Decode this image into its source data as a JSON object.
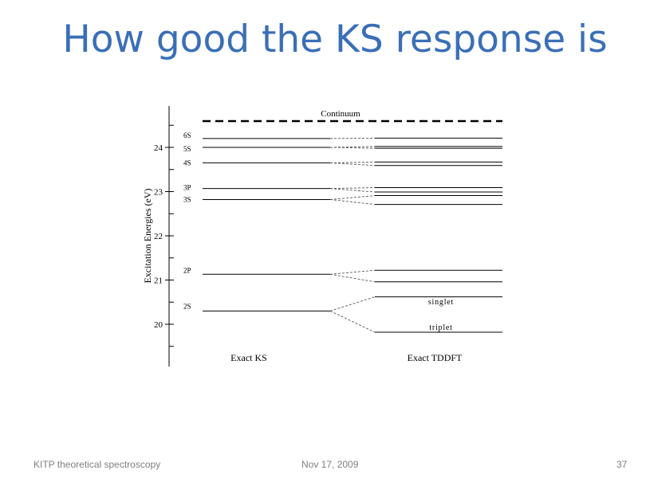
{
  "slide": {
    "title": "How good the KS response is",
    "footer_left": "KITP theoretical spectroscopy",
    "footer_center": "Nov 17, 2009",
    "page_number": "37"
  },
  "diagram": {
    "y_axis_label": "Excitation Energies (eV)",
    "y_ticks": [
      "20",
      "21",
      "22",
      "23",
      "24"
    ],
    "continuum_label": "Continuum",
    "ks_column_label": "Exact KS",
    "tddft_column_label": "Exact TDDFT",
    "ks_levels": [
      {
        "label": "2S",
        "energy": 20.3
      },
      {
        "label": "2P",
        "energy": 21.13
      },
      {
        "label": "3S",
        "energy": 22.82
      },
      {
        "label": "3P",
        "energy": 23.07
      },
      {
        "label": "4S",
        "energy": 23.65
      },
      {
        "label": "5S",
        "energy": 24.0
      },
      {
        "label": "6S",
        "energy": 24.2
      }
    ],
    "tddft_levels": [
      19.82,
      20.62,
      20.96,
      21.22,
      22.71,
      22.91,
      22.99,
      23.09,
      23.59,
      23.67,
      23.98,
      24.02,
      24.21
    ],
    "state_labels": {
      "singlet": "singlet",
      "triplet": "triplet"
    }
  }
}
